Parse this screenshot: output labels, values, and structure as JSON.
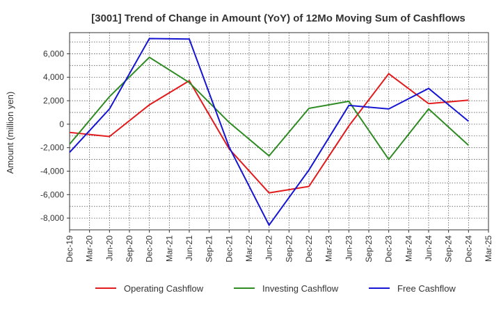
{
  "chart_data": {
    "type": "line",
    "title": "[3001]  Trend of Change in Amount (YoY) of 12Mo Moving Sum of Cashflows",
    "xlabel": "",
    "ylabel": "Amount (million yen)",
    "ylim": [
      -9000,
      7800
    ],
    "yticks": [
      6000,
      4000,
      2000,
      0,
      -2000,
      -4000,
      -6000,
      -8000
    ],
    "ytick_labels": [
      "6,000",
      "4,000",
      "2,000",
      "0",
      "-2,000",
      "-4,000",
      "-6,000",
      "-8,000"
    ],
    "categories": [
      "Dec-19",
      "Mar-20",
      "Jun-20",
      "Sep-20",
      "Dec-20",
      "Mar-21",
      "Jun-21",
      "Sep-21",
      "Dec-21",
      "Mar-22",
      "Jun-22",
      "Sep-22",
      "Dec-22",
      "Mar-23",
      "Jun-23",
      "Sep-23",
      "Dec-23",
      "Mar-24",
      "Jun-24",
      "Sep-24",
      "Dec-24",
      "Mar-25"
    ],
    "grid": true,
    "legend_position": "bottom",
    "series": [
      {
        "name": "Operating Cashflow",
        "color": "#e31a1c",
        "points": [
          {
            "x": "Dec-19",
            "y": -700
          },
          {
            "x": "Jun-20",
            "y": -1050
          },
          {
            "x": "Dec-20",
            "y": 1650
          },
          {
            "x": "Jun-21",
            "y": 3700
          },
          {
            "x": "Dec-21",
            "y": -2100
          },
          {
            "x": "Jun-22",
            "y": -5850
          },
          {
            "x": "Dec-22",
            "y": -5300
          },
          {
            "x": "Jun-23",
            "y": -150
          },
          {
            "x": "Dec-23",
            "y": 4300
          },
          {
            "x": "Jun-24",
            "y": 1750
          },
          {
            "x": "Dec-24",
            "y": 2050
          }
        ]
      },
      {
        "name": "Investing Cashflow",
        "color": "#2e8b22",
        "points": [
          {
            "x": "Dec-19",
            "y": -1700
          },
          {
            "x": "Jun-20",
            "y": 2350
          },
          {
            "x": "Dec-20",
            "y": 5700
          },
          {
            "x": "Jun-21",
            "y": 3550
          },
          {
            "x": "Dec-21",
            "y": 150
          },
          {
            "x": "Jun-22",
            "y": -2700
          },
          {
            "x": "Dec-22",
            "y": 1350
          },
          {
            "x": "Jun-23",
            "y": 1950
          },
          {
            "x": "Dec-23",
            "y": -3000
          },
          {
            "x": "Jun-24",
            "y": 1300
          },
          {
            "x": "Dec-24",
            "y": -1800
          }
        ]
      },
      {
        "name": "Free Cashflow",
        "color": "#1414d4",
        "points": [
          {
            "x": "Dec-19",
            "y": -2400
          },
          {
            "x": "Jun-20",
            "y": 1300
          },
          {
            "x": "Dec-20",
            "y": 7300
          },
          {
            "x": "Jun-21",
            "y": 7250
          },
          {
            "x": "Dec-21",
            "y": -1950
          },
          {
            "x": "Jun-22",
            "y": -8600
          },
          {
            "x": "Dec-22",
            "y": -3900
          },
          {
            "x": "Jun-23",
            "y": 1600
          },
          {
            "x": "Dec-23",
            "y": 1300
          },
          {
            "x": "Jun-24",
            "y": 3050
          },
          {
            "x": "Dec-24",
            "y": 250
          }
        ]
      }
    ]
  }
}
